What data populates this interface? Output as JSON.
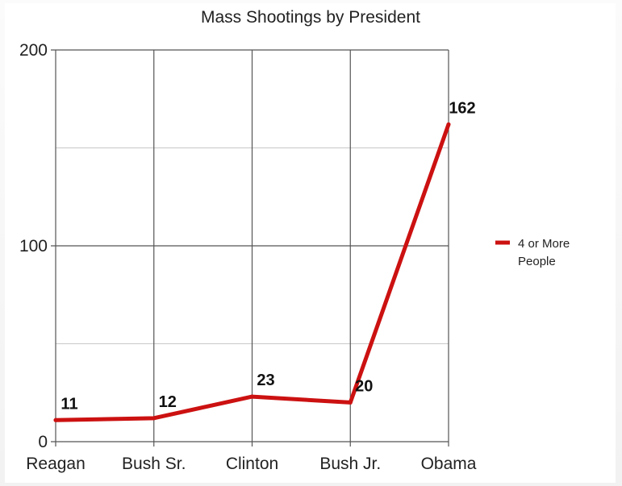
{
  "chart_data": {
    "type": "line",
    "title": "Mass Shootings by President",
    "categories": [
      "Reagan",
      "Bush Sr.",
      "Clinton",
      "Bush Jr.",
      "Obama"
    ],
    "series": [
      {
        "name": "4 or More People",
        "values": [
          11,
          12,
          23,
          20,
          162
        ],
        "color": "#cc1111"
      }
    ],
    "data_labels": [
      "11",
      "12",
      "23",
      "20",
      "162"
    ],
    "ylim": [
      0,
      200
    ],
    "y_ticks": [
      "0",
      "100",
      "200"
    ],
    "y_minor_step": 50,
    "grid": true,
    "legend": {
      "position": "right",
      "lines": [
        "4 or More",
        "People"
      ]
    }
  }
}
